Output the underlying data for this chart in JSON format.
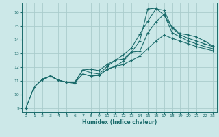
{
  "xlabel": "Humidex (Indice chaleur)",
  "background_color": "#cce8e8",
  "grid_color": "#aacccc",
  "line_color": "#1a6b6b",
  "xlim": [
    -0.5,
    23.5
  ],
  "ylim": [
    8.7,
    16.7
  ],
  "xticks": [
    0,
    1,
    2,
    3,
    4,
    5,
    6,
    7,
    8,
    9,
    10,
    11,
    12,
    13,
    14,
    15,
    16,
    17,
    18,
    19,
    20,
    21,
    22,
    23
  ],
  "yticks": [
    9,
    10,
    11,
    12,
    13,
    14,
    15,
    16
  ],
  "lines": [
    {
      "x": [
        0,
        1,
        2,
        3,
        4,
        5,
        6,
        7,
        8,
        9,
        10,
        11,
        12,
        13,
        14,
        15,
        16,
        17,
        18,
        19,
        20,
        21,
        22,
        23
      ],
      "y": [
        9.0,
        10.55,
        11.1,
        11.35,
        11.05,
        10.9,
        10.85,
        11.5,
        11.35,
        11.4,
        11.85,
        12.05,
        12.45,
        13.1,
        13.9,
        16.25,
        16.3,
        15.8,
        14.9,
        14.45,
        14.35,
        14.2,
        13.9,
        13.55
      ]
    },
    {
      "x": [
        0,
        1,
        2,
        3,
        4,
        5,
        6,
        7,
        8,
        9,
        10,
        11,
        12,
        13,
        14,
        15,
        16,
        17,
        18,
        19,
        20,
        21,
        22,
        23
      ],
      "y": [
        9.0,
        10.55,
        11.1,
        11.35,
        11.05,
        10.9,
        10.9,
        11.8,
        11.6,
        11.5,
        12.05,
        12.5,
        12.9,
        13.4,
        14.4,
        15.35,
        16.25,
        16.15,
        14.85,
        14.35,
        14.1,
        13.9,
        13.7,
        13.5
      ]
    },
    {
      "x": [
        2,
        3,
        4,
        5,
        6,
        7,
        8,
        9,
        10,
        11,
        12,
        13,
        14,
        15,
        16,
        17,
        18,
        19,
        20,
        21,
        22,
        23
      ],
      "y": [
        11.1,
        11.35,
        11.05,
        10.9,
        10.85,
        11.8,
        11.85,
        11.75,
        12.2,
        12.5,
        12.6,
        13.1,
        13.15,
        14.5,
        15.3,
        15.85,
        14.5,
        14.2,
        13.9,
        13.7,
        13.5,
        13.35
      ]
    },
    {
      "x": [
        2,
        3,
        4,
        5,
        6,
        7,
        8,
        9,
        10,
        11,
        12,
        13,
        14,
        15,
        16,
        17,
        18,
        19,
        20,
        21,
        22,
        23
      ],
      "y": [
        11.1,
        11.35,
        11.05,
        10.9,
        10.85,
        11.5,
        11.35,
        11.4,
        11.85,
        12.05,
        12.2,
        12.5,
        12.8,
        13.35,
        13.9,
        14.35,
        14.1,
        13.9,
        13.7,
        13.5,
        13.35,
        13.2
      ]
    }
  ]
}
